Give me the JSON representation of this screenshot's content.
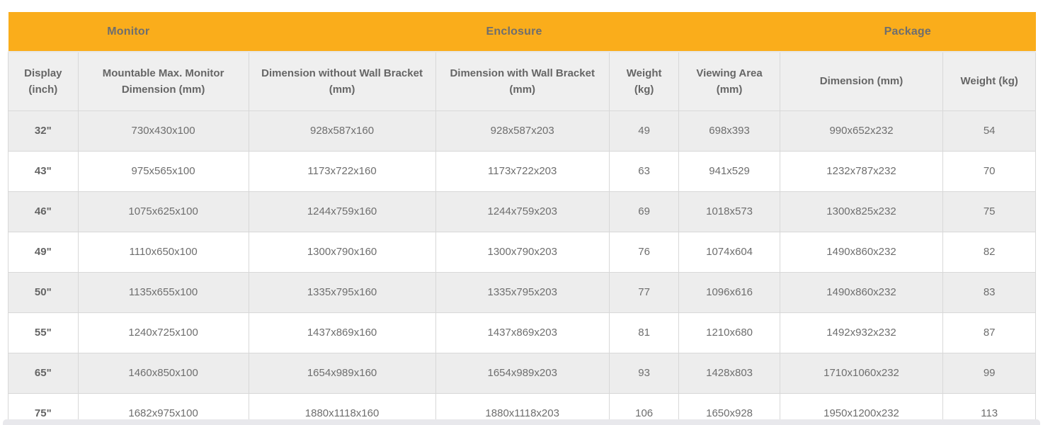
{
  "colors": {
    "accent_orange": "#faad1b",
    "header_bg": "#efefef",
    "row_alt_bg": "#ededed",
    "row_bg": "#ffffff",
    "border": "#d8d8d8",
    "text": "#6e6e6e",
    "bottom_strip": "#e8e8ec"
  },
  "table": {
    "groups": [
      {
        "label": "Monitor",
        "span": 2
      },
      {
        "label": "Enclosure",
        "span": 4
      },
      {
        "label": "Package",
        "span": 2
      }
    ],
    "columns": [
      "Display (inch)",
      "Mountable Max. Monitor Dimension (mm)",
      "Dimension without Wall Bracket (mm)",
      "Dimension with Wall Bracket (mm)",
      "Weight (kg)",
      "Viewing Area (mm)",
      "Dimension (mm)",
      "Weight (kg)"
    ],
    "column_widths_percent": [
      6.8,
      16.6,
      18.2,
      16.9,
      6.8,
      9.8,
      15.9,
      9.0
    ],
    "rows": [
      [
        "32\"",
        "730x430x100",
        "928x587x160",
        "928x587x203",
        "49",
        "698x393",
        "990x652x232",
        "54"
      ],
      [
        "43\"",
        "975x565x100",
        "1173x722x160",
        "1173x722x203",
        "63",
        "941x529",
        "1232x787x232",
        "70"
      ],
      [
        "46\"",
        "1075x625x100",
        "1244x759x160",
        "1244x759x203",
        "69",
        "1018x573",
        "1300x825x232",
        "75"
      ],
      [
        "49\"",
        "1110x650x100",
        "1300x790x160",
        "1300x790x203",
        "76",
        "1074x604",
        "1490x860x232",
        "82"
      ],
      [
        "50\"",
        "1135x655x100",
        "1335x795x160",
        "1335x795x203",
        "77",
        "1096x616",
        "1490x860x232",
        "83"
      ],
      [
        "55\"",
        "1240x725x100",
        "1437x869x160",
        "1437x869x203",
        "81",
        "1210x680",
        "1492x932x232",
        "87"
      ],
      [
        "65\"",
        "1460x850x100",
        "1654x989x160",
        "1654x989x203",
        "93",
        "1428x803",
        "1710x1060x232",
        "99"
      ],
      [
        "75\"",
        "1682x975x100",
        "1880x1118x160",
        "1880x1118x203",
        "106",
        "1650x928",
        "1950x1200x232",
        "113"
      ]
    ]
  }
}
